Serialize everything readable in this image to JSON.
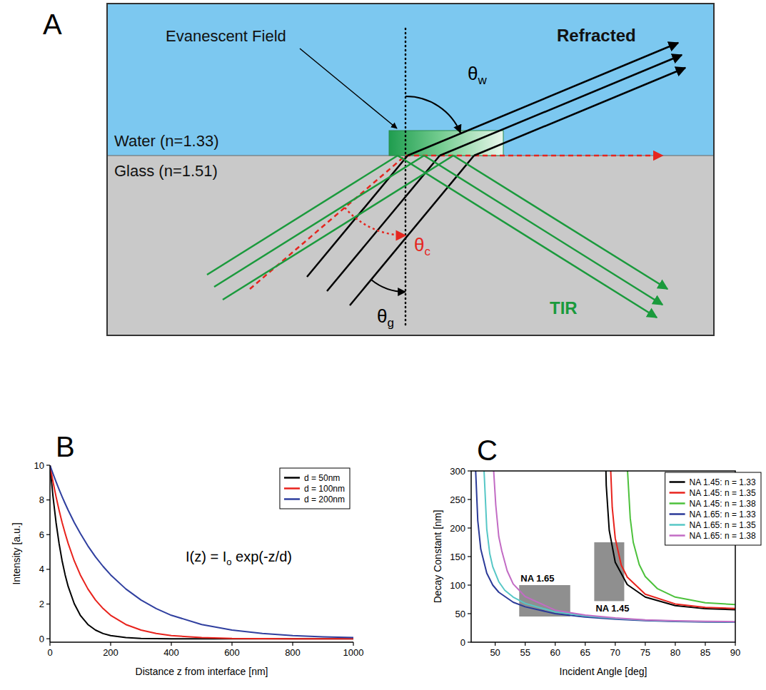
{
  "diagram": {
    "panel": "A",
    "evanescent_label": "Evanescent Field",
    "media": [
      {
        "label": "Water (n=1.33)"
      },
      {
        "label": "Glass (n=1.51)"
      }
    ],
    "refracted_label": "Refracted",
    "tir_label": "TIR",
    "angles": [
      {
        "symbol": "θ",
        "subscript": "w"
      },
      {
        "symbol": "θ",
        "subscript": "c"
      },
      {
        "symbol": "θ",
        "subscript": "g"
      }
    ]
  },
  "chart_data": [
    {
      "type": "line",
      "panel": "B",
      "xlabel": "Distance z from interface [nm]",
      "ylabel": "Intensity [a.u.]",
      "annotation": [
        {
          "text": "I(z) = I"
        },
        {
          "text": "o",
          "subscript": true
        },
        {
          "text": " exp(-z/d)"
        }
      ],
      "x": [
        0,
        10,
        20,
        30,
        40,
        50,
        60,
        80,
        100,
        125,
        150,
        175,
        200,
        250,
        300,
        350,
        400,
        500,
        600,
        700,
        800,
        900,
        1000
      ],
      "series": [
        {
          "name": "d = 50nm",
          "color": "#000000",
          "values": [
            10,
            8.19,
            6.7,
            5.49,
            4.49,
            3.68,
            3.01,
            2.02,
            1.35,
            0.82,
            0.5,
            0.3,
            0.18,
            0.07,
            0.02,
            0.01,
            0,
            0,
            0,
            0,
            0,
            0,
            0
          ]
        },
        {
          "name": "d = 100nm",
          "color": "#e8221c",
          "values": [
            10,
            9.05,
            8.19,
            7.41,
            6.7,
            6.07,
            5.49,
            4.49,
            3.68,
            2.87,
            2.23,
            1.74,
            1.35,
            0.82,
            0.5,
            0.3,
            0.18,
            0.07,
            0.02,
            0.01,
            0,
            0,
            0
          ]
        },
        {
          "name": "d = 200nm",
          "color": "#2f3f9f",
          "values": [
            10,
            9.51,
            9.05,
            8.61,
            8.19,
            7.79,
            7.41,
            6.7,
            6.07,
            5.35,
            4.72,
            4.17,
            3.68,
            2.87,
            2.23,
            1.74,
            1.35,
            0.82,
            0.5,
            0.3,
            0.18,
            0.11,
            0.07
          ]
        }
      ],
      "xlim": [
        0,
        1000
      ],
      "ylim": [
        -0.2,
        10
      ],
      "xticks": [
        0,
        200,
        400,
        600,
        800,
        1000
      ],
      "yticks": [
        0,
        2,
        4,
        6,
        8,
        10
      ],
      "grid": false,
      "legend": "upper right"
    },
    {
      "type": "line",
      "panel": "C",
      "xlabel": "Incident Angle [deg]",
      "ylabel": "Decay Constant [nm]",
      "series": [
        {
          "name": "NA 1.45: n = 1.33",
          "color": "#000000",
          "x": [
            68.45,
            68.5,
            69,
            70,
            72,
            75,
            80,
            85,
            90
          ],
          "values": [
            300,
            275,
            196,
            140,
            101,
            79,
            64,
            58.6,
            57
          ]
        },
        {
          "name": "NA 1.45: n = 1.35",
          "color": "#e8221c",
          "x": [
            69.25,
            69.5,
            70,
            71,
            72,
            75,
            80,
            85,
            90
          ],
          "values": [
            300,
            236,
            182,
            135,
            114,
            84,
            67,
            61,
            59
          ]
        },
        {
          "name": "NA 1.45: n = 1.38",
          "color": "#4cc13b",
          "x": [
            72.05,
            72.5,
            73,
            74,
            75,
            77,
            80,
            85,
            90
          ],
          "values": [
            300,
            217,
            175,
            136,
            115,
            94,
            79,
            69,
            66
          ]
        },
        {
          "name": "NA 1.65: n = 1.33",
          "color": "#2b3a98",
          "x": [
            46.75,
            47.1,
            47.6,
            48.6,
            49.6,
            50.6,
            53,
            55,
            60,
            65,
            70,
            75,
            80,
            85,
            90
          ],
          "values": [
            300,
            213,
            163,
            121,
            100,
            87.5,
            70,
            62,
            50,
            44,
            40.4,
            37.9,
            36.2,
            35.3,
            35
          ]
        },
        {
          "name": "NA 1.65: n = 1.35",
          "color": "#56c7c6",
          "x": [
            48.15,
            48.6,
            49.1,
            49.6,
            50.6,
            51.6,
            53,
            55,
            60,
            65,
            70,
            75,
            80,
            85,
            90
          ],
          "values": [
            300,
            198,
            155,
            132,
            106,
            91,
            79,
            68,
            53,
            46,
            41.5,
            38.6,
            36.8,
            35.8,
            35.5
          ]
        },
        {
          "name": "NA 1.65: n = 1.38",
          "color": "#c26bc4",
          "x": [
            49.75,
            50.1,
            50.6,
            51.1,
            52,
            53,
            55,
            60,
            65,
            70,
            75,
            80,
            85,
            90
          ],
          "values": [
            300,
            240,
            185,
            160,
            125,
            102,
            80,
            56,
            47.5,
            42.5,
            39.2,
            37.5,
            36.5,
            36
          ]
        }
      ],
      "regions": [
        {
          "label": "NA 1.65",
          "x": [
            54,
            62.5
          ],
          "y": [
            45,
            100
          ]
        },
        {
          "label": "NA 1.45",
          "x": [
            66.5,
            71.5
          ],
          "y": [
            72,
            175
          ]
        }
      ],
      "xlim": [
        46,
        90
      ],
      "ylim": [
        0,
        300
      ],
      "xticks": [
        50,
        55,
        60,
        65,
        70,
        75,
        80,
        85,
        90
      ],
      "yticks": [
        0,
        50,
        100,
        150,
        200,
        250,
        300
      ],
      "grid": false,
      "legend": "upper right"
    }
  ]
}
